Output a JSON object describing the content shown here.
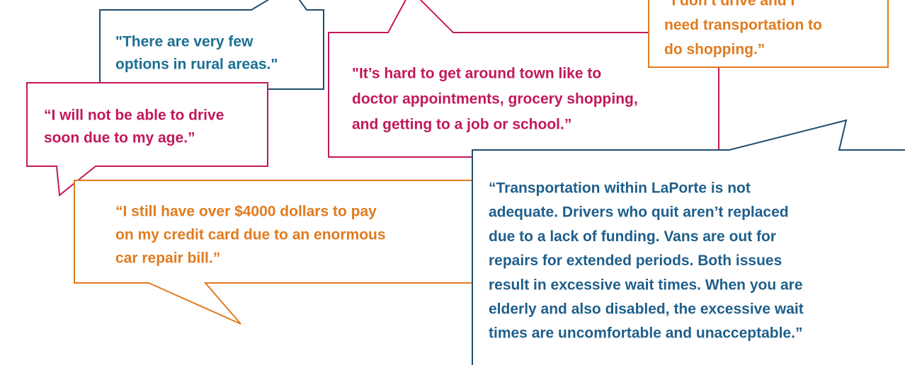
{
  "bubbles": [
    {
      "lines": [
        "\"It’s hard to get around town like to",
        "doctor appointments, grocery shopping,",
        "and getting to a job or school.”"
      ]
    },
    {
      "lines": [
        "\"There are very few",
        "options in rural areas.\""
      ]
    },
    {
      "lines": [
        "“I don’t drive and I",
        "need transportation to",
        "do shopping.”"
      ]
    },
    {
      "lines": [
        "“I will not be able to drive",
        "soon due to my age.”"
      ]
    },
    {
      "lines": [
        "“I still have over $4000 dollars to pay",
        "on my credit card due to an enormous",
        "car repair bill.”"
      ]
    },
    {
      "lines": [
        "“Transportation within LaPorte is not",
        "adequate. Drivers who quit aren’t replaced",
        "due to a lack of funding. Vans are out for",
        "repairs for extended periods. Both issues",
        "result in excessive wait times. When you are",
        "elderly and also disabled, the excessive wait",
        "times are uncomfortable and unacceptable.”"
      ]
    }
  ]
}
